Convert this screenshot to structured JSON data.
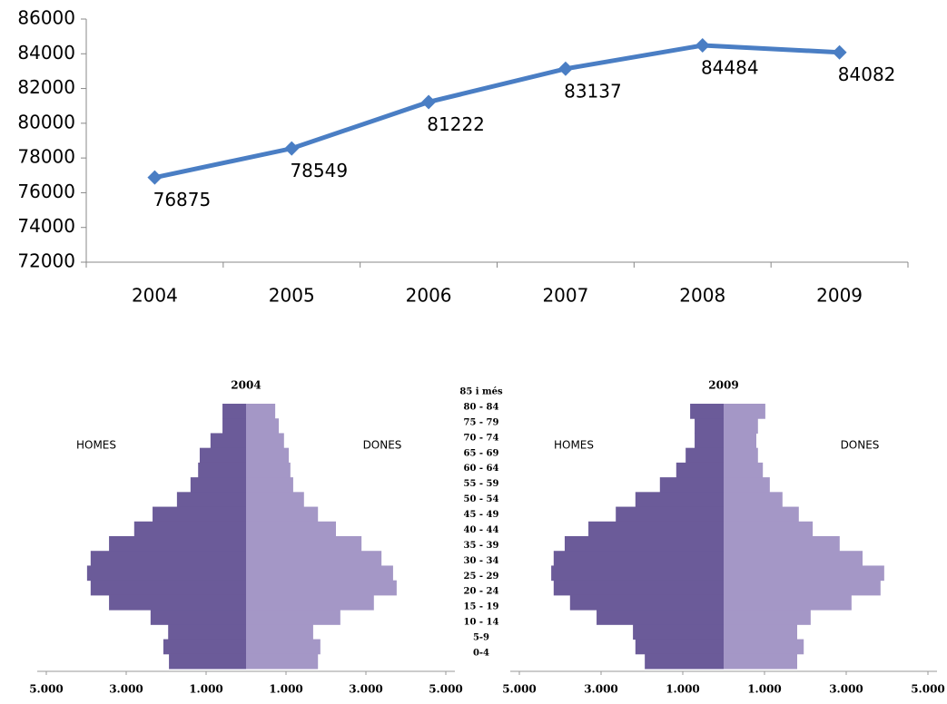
{
  "chart_data": [
    {
      "type": "line",
      "categories": [
        "2004",
        "2005",
        "2006",
        "2007",
        "2008",
        "2009"
      ],
      "values": [
        76875,
        78549,
        81222,
        83137,
        84484,
        84082
      ],
      "color": "#4a7ec4",
      "ylim": [
        72000,
        86000
      ],
      "yticks": [
        72000,
        74000,
        76000,
        78000,
        80000,
        82000,
        84000,
        86000
      ],
      "grid": false
    },
    {
      "type": "pyramid",
      "title": "2004",
      "categories": [
        "85 i més",
        "80 - 84",
        "75 - 79",
        "70 - 74",
        "65 - 69",
        "60 - 64",
        "55 - 59",
        "50 - 54",
        "45 - 49",
        "40 - 44",
        "35 - 39",
        "30 - 34",
        "25 - 29",
        "20 - 24",
        "15 - 19",
        "10 - 14",
        "5-9",
        "0-4"
      ],
      "series": [
        {
          "name": "HOMES",
          "color": "#6b5b99",
          "values": [
            590,
            590,
            890,
            1160,
            1200,
            1390,
            1730,
            2340,
            2800,
            3430,
            3890,
            3980,
            3890,
            3430,
            2390,
            1950,
            2070,
            1930
          ]
        },
        {
          "name": "DONES",
          "color": "#a497c6",
          "values": [
            730,
            820,
            950,
            1070,
            1110,
            1180,
            1450,
            1800,
            2250,
            2890,
            3390,
            3680,
            3770,
            3200,
            2360,
            1680,
            1860,
            1800
          ]
        }
      ],
      "xlim": [
        -5000,
        5000
      ],
      "xticks": [
        {
          "value": -5000,
          "label": "5.000"
        },
        {
          "value": -3000,
          "label": "3.000"
        },
        {
          "value": -1000,
          "label": "1.000"
        },
        {
          "value": 1000,
          "label": "1.000"
        },
        {
          "value": 3000,
          "label": "3.000"
        },
        {
          "value": 5000,
          "label": "5.000"
        }
      ]
    },
    {
      "type": "pyramid",
      "title": "2009",
      "series": [
        {
          "name": "HOMES",
          "color": "#6b5b99",
          "values": [
            820,
            710,
            710,
            930,
            1160,
            1560,
            2160,
            2640,
            3310,
            3890,
            4160,
            4220,
            4160,
            3760,
            3110,
            2220,
            2160,
            1930
          ]
        },
        {
          "name": "DONES",
          "color": "#a497c6",
          "values": [
            1020,
            840,
            800,
            840,
            960,
            1130,
            1440,
            1840,
            2180,
            2840,
            3400,
            3930,
            3840,
            3130,
            2130,
            1800,
            1960,
            1800
          ]
        }
      ],
      "xlim": [
        -5000,
        5000
      ],
      "xticks": [
        {
          "value": -5000,
          "label": "5.000"
        },
        {
          "value": -3000,
          "label": "3.000"
        },
        {
          "value": -1000,
          "label": "1.000"
        },
        {
          "value": 1000,
          "label": "1.000"
        },
        {
          "value": 3000,
          "label": "3.000"
        },
        {
          "value": 5000,
          "label": "5.000"
        }
      ]
    }
  ]
}
